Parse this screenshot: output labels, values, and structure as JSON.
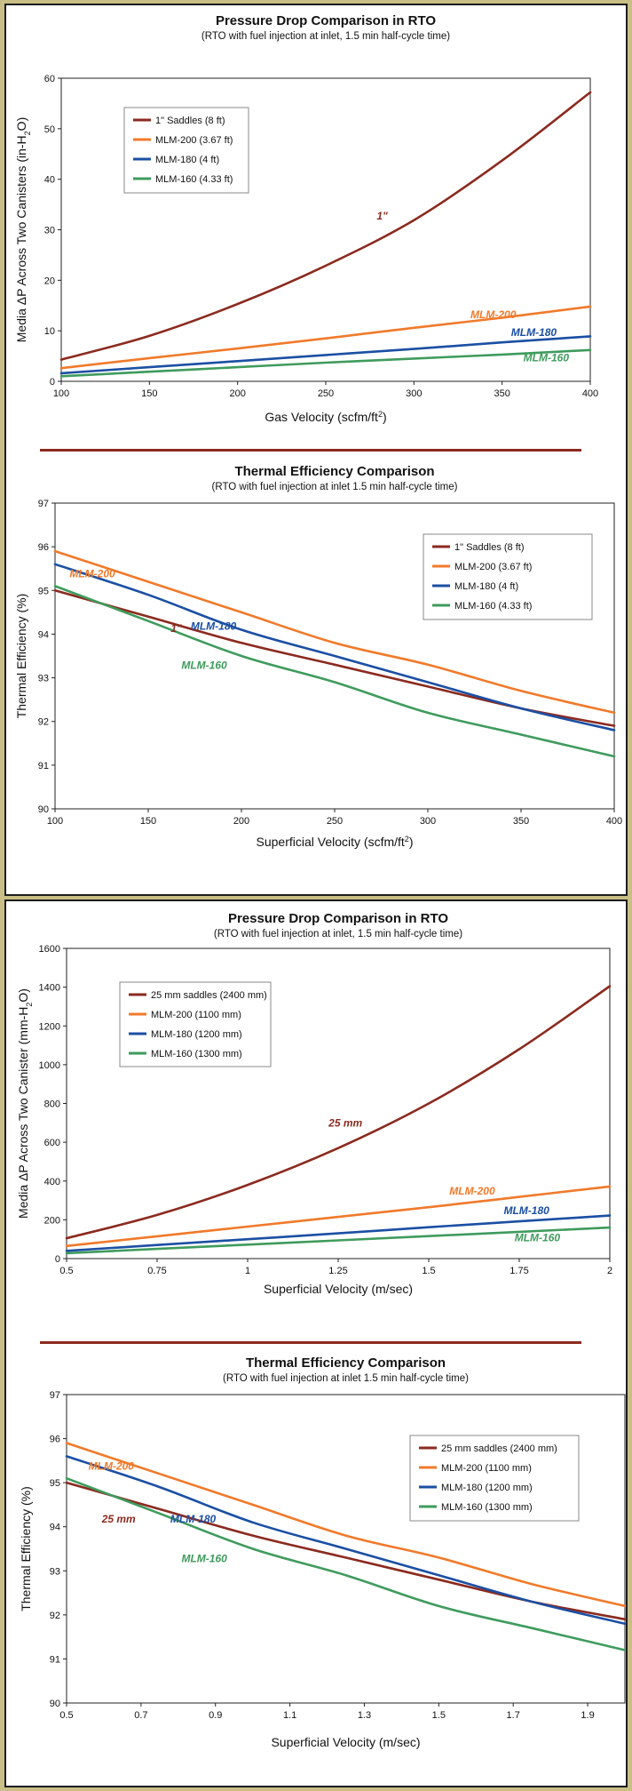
{
  "colors": {
    "background": "#c9bf86",
    "divider": "#8b2a1f",
    "saddles": "#8b2a1f",
    "mlm200": "#f07a2b",
    "mlm180": "#1b4fa3",
    "mlm160": "#3f9b5d"
  },
  "chart_data": [
    {
      "type": "line",
      "title": "Pressure Drop Comparison in RTO",
      "subtitle": "(RTO with fuel injection at inlet, 1.5 min half-cycle time)",
      "xlabel_main": "Gas Velocity (scfm/ft",
      "xlabel_sup": "2",
      "xlabel_tail": ")",
      "ylabel": "Media ΔP Across Two Canisters (in-H",
      "ylabel_sub": "2",
      "ylabel_tail": "O)",
      "xlim": [
        100,
        400
      ],
      "ylim": [
        0,
        60
      ],
      "xticks": [
        "100",
        "150",
        "200",
        "250",
        "300",
        "350",
        "400"
      ],
      "yticks": [
        "0",
        "10",
        "20",
        "30",
        "40",
        "50",
        "60"
      ],
      "grid": false,
      "legend_position": "top-left",
      "x": [
        100,
        150,
        200,
        250,
        300,
        350,
        400
      ],
      "series": [
        {
          "name": "1\" Saddles (8 ft)",
          "color": "#8b2a1f",
          "values": [
            4.3,
            9.0,
            15.3,
            22.9,
            31.9,
            43.7,
            57.2
          ]
        },
        {
          "name": "MLM-200 (3.67 ft)",
          "color": "#f07a2b",
          "values": [
            2.6,
            4.6,
            6.5,
            8.5,
            10.6,
            12.6,
            14.8
          ]
        },
        {
          "name": "MLM-180 (4 ft)",
          "color": "#1b4fa3",
          "values": [
            1.6,
            2.8,
            4.0,
            5.2,
            6.4,
            7.7,
            8.9
          ]
        },
        {
          "name": "MLM-160 (4.33 ft)",
          "color": "#3f9b5d",
          "values": [
            1.0,
            1.9,
            2.8,
            3.7,
            4.5,
            5.3,
            6.2
          ]
        }
      ],
      "annotations": [
        {
          "text": "1\"",
          "color": "#8b2a1f",
          "x": 282,
          "y": 32
        },
        {
          "text": "MLM-200",
          "color": "#f07a2b",
          "x": 345,
          "y": 12.5
        },
        {
          "text": "MLM-180",
          "color": "#1b4fa3",
          "x": 368,
          "y": 9
        },
        {
          "text": "MLM-160",
          "color": "#3f9b5d",
          "x": 375,
          "y": 4
        }
      ]
    },
    {
      "type": "line",
      "title": "Thermal Efficiency Comparison",
      "subtitle": "(RTO with fuel injection at inlet 1.5 min half-cycle time)",
      "xlabel_main": "Superficial Velocity (scfm/ft",
      "xlabel_sup": "2",
      "xlabel_tail": ")",
      "ylabel": "Thermal Efficiency (%)",
      "ylabel_sub": "",
      "ylabel_tail": "",
      "xlim": [
        100,
        400
      ],
      "ylim": [
        90,
        97
      ],
      "xticks": [
        "100",
        "150",
        "200",
        "250",
        "300",
        "350",
        "400"
      ],
      "yticks": [
        "90",
        "91",
        "92",
        "93",
        "94",
        "95",
        "96",
        "97"
      ],
      "grid": false,
      "legend_position": "top-right",
      "x": [
        100,
        150,
        200,
        250,
        300,
        350,
        400
      ],
      "series": [
        {
          "name": "1\" Saddles (8 ft)",
          "color": "#8b2a1f",
          "values": [
            95.0,
            94.4,
            93.8,
            93.3,
            92.8,
            92.3,
            91.9
          ]
        },
        {
          "name": "MLM-200 (3.67 ft)",
          "color": "#f07a2b",
          "values": [
            95.9,
            95.2,
            94.5,
            93.8,
            93.3,
            92.7,
            92.2
          ]
        },
        {
          "name": "MLM-180 (4 ft)",
          "color": "#1b4fa3",
          "values": [
            95.6,
            94.9,
            94.1,
            93.5,
            92.9,
            92.3,
            91.8
          ]
        },
        {
          "name": "MLM-160 (4.33 ft)",
          "color": "#3f9b5d",
          "values": [
            95.1,
            94.3,
            93.5,
            92.9,
            92.2,
            91.7,
            91.2
          ]
        }
      ],
      "annotations": [
        {
          "text": "MLM-200",
          "color": "#f07a2b",
          "x": 120,
          "y": 95.3
        },
        {
          "text": "1\"",
          "color": "#8b2a1f",
          "x": 165,
          "y": 94.05
        },
        {
          "text": "MLM-180",
          "color": "#1b4fa3",
          "x": 185,
          "y": 94.1
        },
        {
          "text": "MLM-160",
          "color": "#3f9b5d",
          "x": 180,
          "y": 93.2
        }
      ]
    },
    {
      "type": "line",
      "title": "Pressure Drop Comparison in RTO",
      "subtitle": "(RTO with fuel injection at inlet, 1.5 min half-cycle time)",
      "xlabel_main": "Superficial Velocity (m/sec)",
      "xlabel_sup": "",
      "xlabel_tail": "",
      "ylabel": "Media ΔP Across Two Canister (mm-H",
      "ylabel_sub": "2",
      "ylabel_tail": "O)",
      "xlim": [
        0.5,
        2
      ],
      "ylim": [
        0,
        1600
      ],
      "xticks": [
        "0.5",
        "0.75",
        "1",
        "1.25",
        "1.5",
        "1.75",
        "2"
      ],
      "yticks": [
        "0",
        "200",
        "400",
        "600",
        "800",
        "1000",
        "1200",
        "1400",
        "1600"
      ],
      "grid": false,
      "legend_position": "top-left",
      "x": [
        0.5,
        0.75,
        1.0,
        1.25,
        1.5,
        1.75,
        2.0
      ],
      "series": [
        {
          "name": "25 mm saddles (2400 mm)",
          "color": "#8b2a1f",
          "values": [
            105,
            225,
            380,
            570,
            800,
            1080,
            1405
          ]
        },
        {
          "name": "MLM-200 (1100 mm)",
          "color": "#f07a2b",
          "values": [
            65,
            115,
            165,
            215,
            265,
            318,
            372
          ]
        },
        {
          "name": "MLM-180 (1200 mm)",
          "color": "#1b4fa3",
          "values": [
            40,
            70,
            100,
            130,
            162,
            192,
            222
          ]
        },
        {
          "name": "MLM-160 (1300 mm)",
          "color": "#3f9b5d",
          "values": [
            28,
            50,
            72,
            94,
            116,
            138,
            160
          ]
        }
      ],
      "annotations": [
        {
          "text": "25 mm",
          "color": "#8b2a1f",
          "x": 1.27,
          "y": 680
        },
        {
          "text": "MLM-200",
          "color": "#f07a2b",
          "x": 1.62,
          "y": 330
        },
        {
          "text": "MLM-180",
          "color": "#1b4fa3",
          "x": 1.77,
          "y": 230
        },
        {
          "text": "MLM-160",
          "color": "#3f9b5d",
          "x": 1.8,
          "y": 90
        }
      ]
    },
    {
      "type": "line",
      "title": "Thermal Efficiency Comparison",
      "subtitle": "(RTO with fuel injection at inlet 1.5 min half-cycle time)",
      "xlabel_main": "Superficial Velocity (m/sec)",
      "xlabel_sup": "",
      "xlabel_tail": "",
      "ylabel": "Thermal Efficiency (%)",
      "ylabel_sub": "",
      "ylabel_tail": "",
      "xlim": [
        0.5,
        2.0
      ],
      "ylim": [
        90,
        97
      ],
      "xticks": [
        "0.5",
        "0.7",
        "0.9",
        "1.1",
        "1.3",
        "1.5",
        "1.7",
        "1.9"
      ],
      "yticks": [
        "90",
        "91",
        "92",
        "93",
        "94",
        "95",
        "96",
        "97"
      ],
      "grid": false,
      "legend_position": "top-right",
      "x": [
        0.5,
        0.75,
        1.0,
        1.25,
        1.5,
        1.75,
        2.0
      ],
      "series": [
        {
          "name": "25 mm saddles (2400 mm)",
          "color": "#8b2a1f",
          "values": [
            95.0,
            94.4,
            93.8,
            93.3,
            92.8,
            92.3,
            91.9
          ]
        },
        {
          "name": "MLM-200 (1100 mm)",
          "color": "#f07a2b",
          "values": [
            95.9,
            95.2,
            94.5,
            93.8,
            93.3,
            92.7,
            92.2
          ]
        },
        {
          "name": "MLM-180 (1200 mm)",
          "color": "#1b4fa3",
          "values": [
            95.6,
            94.9,
            94.1,
            93.5,
            92.9,
            92.3,
            91.8
          ]
        },
        {
          "name": "MLM-160 (1300 mm)",
          "color": "#3f9b5d",
          "values": [
            95.1,
            94.3,
            93.5,
            92.9,
            92.2,
            91.7,
            91.2
          ]
        }
      ],
      "annotations": [
        {
          "text": "MLM-200",
          "color": "#f07a2b",
          "x": 0.62,
          "y": 95.3
        },
        {
          "text": "25 mm",
          "color": "#8b2a1f",
          "x": 0.64,
          "y": 94.1
        },
        {
          "text": "MLM-180",
          "color": "#1b4fa3",
          "x": 0.84,
          "y": 94.1
        },
        {
          "text": "MLM-160",
          "color": "#3f9b5d",
          "x": 0.87,
          "y": 93.2
        }
      ]
    }
  ]
}
